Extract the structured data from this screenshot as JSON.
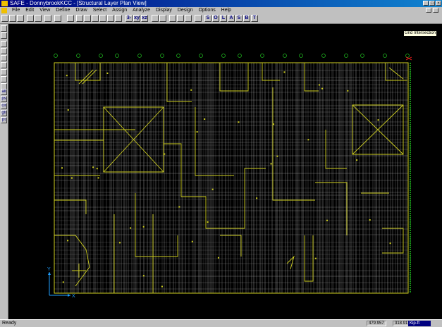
{
  "window": {
    "title": "SAFE - DonnybrookKCC - [Structural Layer Plan View]",
    "min_btn": "_",
    "max_btn": "□",
    "close_btn": "×"
  },
  "menu": [
    "File",
    "Edit",
    "View",
    "Define",
    "Draw",
    "Select",
    "Assign",
    "Analyze",
    "Display",
    "Design",
    "Options",
    "Help"
  ],
  "toolbar": {
    "buttons": [
      "new",
      "open",
      "save",
      "undo",
      "redo",
      "lock",
      "refresh",
      "zoom-window",
      "zoom-in",
      "zoom-out",
      "zoom-full",
      "zoom-previous",
      "pan",
      "3d",
      "xy",
      "plan",
      "set-options",
      "layers",
      "object-shrink",
      "display",
      "S",
      "O",
      "L",
      "A",
      "S",
      "B",
      "T"
    ],
    "text_buttons": [
      "3-d",
      "xy",
      "xz",
      "S",
      "O",
      "L",
      "A",
      "S",
      "B",
      "T"
    ]
  },
  "sidebar_buttons": [
    "pointer",
    "reshape",
    "draw-line",
    "draw-poly",
    "draw-rect",
    "draw-col",
    "draw-wall",
    "draw-beam",
    "draw-point",
    "draw-strip",
    "all",
    "prev",
    "clr",
    "intersect",
    "snap"
  ],
  "sidebar_text": [
    "all",
    "ps",
    "clr",
    "gtl",
    "pt"
  ],
  "canvas": {
    "tooltip": "Grid Intersection",
    "axis_x_label": "X",
    "axis_y_label": "Y"
  },
  "status": {
    "text": "Ready",
    "coord_x": "479.957",
    "coord_y": "318.917",
    "units": "Kip-ft"
  },
  "colors": {
    "grid": "#d8d8d8",
    "structure": "#d0d020",
    "canvas_bg": "#000000",
    "axis": "#20a0ff",
    "right_edge": "#20c020"
  }
}
